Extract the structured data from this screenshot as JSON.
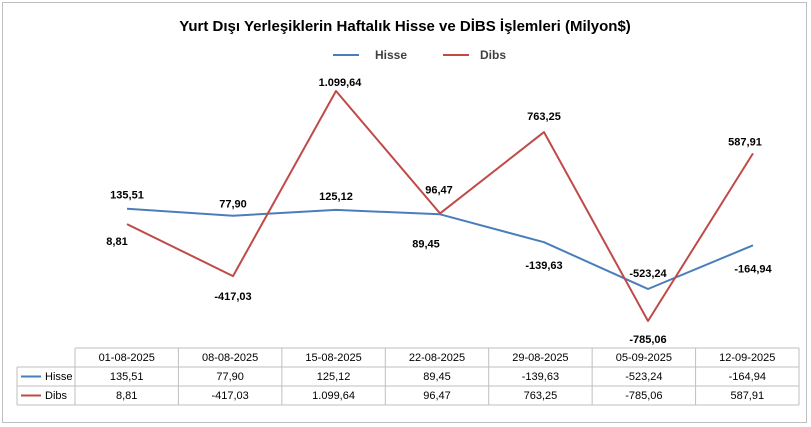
{
  "chart_data": {
    "type": "line",
    "title": "Yurt Dışı Yerleşiklerin Haftalık Hisse ve DİBS İşlemleri (Milyon$)",
    "categories": [
      "01-08-2025",
      "08-08-2025",
      "15-08-2025",
      "22-08-2025",
      "29-08-2025",
      "05-09-2025",
      "12-09-2025"
    ],
    "series": [
      {
        "name": "Hisse",
        "color": "#4a7ebb",
        "values": [
          135.51,
          77.9,
          125.12,
          89.45,
          -139.63,
          -523.24,
          -164.94
        ],
        "labels": [
          "135,51",
          "77,90",
          "125,12",
          "89,45",
          "-139,63",
          "-523,24",
          "-164,94"
        ]
      },
      {
        "name": "Dibs",
        "color": "#be4b48",
        "values": [
          8.81,
          -417.03,
          1099.64,
          96.47,
          763.25,
          -785.06,
          587.91
        ],
        "labels": [
          "8,81",
          "-417,03",
          "1.099,64",
          "96,47",
          "763,25",
          "-785,06",
          "587,91"
        ]
      }
    ],
    "legend": "top",
    "data_table": true,
    "grid": false
  }
}
